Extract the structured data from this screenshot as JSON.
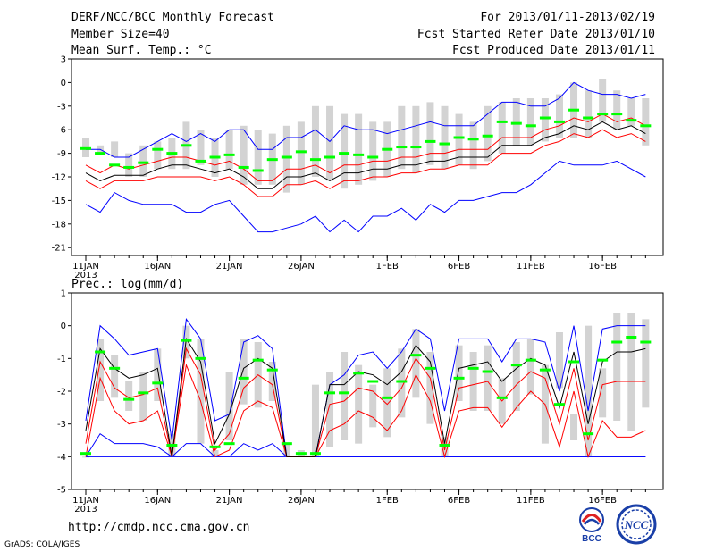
{
  "header": {
    "title": "DERF/NCC/BCC Monthly Forecast",
    "member_size": "Member Size=40",
    "variable": "Mean Surf. Temp.: °C",
    "forecast_period": "For 2013/01/11-2013/02/19",
    "start_date": "Fcst Started Refer Date 2013/01/10",
    "produced_date": "Fcst Produced Date 2013/01/11"
  },
  "footer": {
    "url": "http://cmdp.ncc.cma.gov.cn",
    "grads": "GrADS: COLA/IGES",
    "logo_bcc": "BCC",
    "logo_ncc": "NCC"
  },
  "colors": {
    "bar": "#d3d3d3",
    "mean": "#00ff00",
    "median": "#000000",
    "band": "#ff0000",
    "extreme": "#0000ff"
  },
  "chart_data": [
    {
      "type": "box-plume",
      "title": "Mean Surf. Temp.: °C",
      "x": [
        0,
        1,
        2,
        3,
        4,
        5,
        6,
        7,
        8,
        9,
        10,
        11,
        12,
        13,
        14,
        15,
        16,
        17,
        18,
        19,
        20,
        21,
        22,
        23,
        24,
        25,
        26,
        27,
        28,
        29,
        30,
        31,
        32,
        33,
        34,
        35,
        36,
        37,
        38,
        39
      ],
      "xtick_positions": [
        0,
        5,
        10,
        15,
        21,
        26,
        31,
        36
      ],
      "xtick_labels": [
        "11JAN",
        "16JAN",
        "21JAN",
        "26JAN",
        "1FEB",
        "6FEB",
        "11FEB",
        "16FEB"
      ],
      "year_label": "2013",
      "ylim": [
        -22,
        3
      ],
      "yticks": [
        3,
        0,
        -3,
        -6,
        -9,
        -12,
        -15,
        -18,
        -21
      ],
      "bar_low": [
        -9.5,
        -9,
        -9.5,
        -12,
        -12,
        -11,
        -11,
        -11,
        -10.5,
        -12,
        -11,
        -13,
        -13,
        -13,
        -14,
        -13,
        -12,
        -12.5,
        -13.5,
        -13,
        -12.5,
        -12,
        -11,
        -11.5,
        -10.5,
        -11,
        -10.5,
        -11,
        -10,
        -9,
        -8,
        -8,
        -7.5,
        -7,
        -7,
        -7,
        -5,
        -6,
        -5.5,
        -8
      ],
      "bar_high": [
        -7,
        -8,
        -7.5,
        -9,
        -8,
        -7.5,
        -7,
        -5,
        -6,
        -7,
        -6,
        -5.5,
        -6,
        -6.5,
        -5.5,
        -5,
        -3,
        -3,
        -4,
        -4,
        -5,
        -5,
        -3,
        -3,
        -2.5,
        -3,
        -4,
        -5,
        -3,
        -2.5,
        -2,
        -2,
        -2,
        -1.5,
        0,
        -1,
        0.5,
        -1,
        -2,
        -2
      ],
      "mean": [
        -8.4,
        -9,
        -10.5,
        -10.8,
        -10.2,
        -8.5,
        -9,
        -8,
        -10,
        -9.5,
        -9.2,
        -10.8,
        -11.2,
        -9.8,
        -9.5,
        -8.8,
        -9.8,
        -9.5,
        -9,
        -9.2,
        -9.5,
        -8.5,
        -8.2,
        -8.2,
        -7.5,
        -7.8,
        -7,
        -7.2,
        -6.8,
        -5,
        -5.2,
        -5.5,
        -4.5,
        -5,
        -3.5,
        -4.5,
        -4,
        -4,
        -4.8,
        -5.5
      ],
      "median": [
        -11.5,
        -12.5,
        -11.8,
        -11.8,
        -11.8,
        -11,
        -10.5,
        -10.5,
        -11,
        -11.5,
        -11,
        -12,
        -13.5,
        -13.5,
        -12,
        -12,
        -11.5,
        -12.5,
        -11.5,
        -11.5,
        -11,
        -11,
        -10.5,
        -10.5,
        -10,
        -10,
        -9.5,
        -9.5,
        -9.5,
        -8,
        -8,
        -8,
        -7,
        -6.5,
        -5.5,
        -6,
        -5,
        -6,
        -5.5,
        -6.5
      ],
      "upper_band": [
        -10.5,
        -11.5,
        -10.5,
        -11,
        -10.5,
        -10,
        -9.5,
        -9.5,
        -10,
        -10.5,
        -10,
        -11,
        -12.5,
        -12.5,
        -11,
        -11,
        -10.5,
        -11.5,
        -10.5,
        -10.5,
        -10,
        -10,
        -9.5,
        -9.5,
        -9,
        -9,
        -8.5,
        -8.5,
        -8.5,
        -7,
        -7,
        -7,
        -6,
        -5.5,
        -4.5,
        -5,
        -4,
        -5,
        -4.5,
        -5.5
      ],
      "lower_band": [
        -12.5,
        -13.5,
        -12.5,
        -12.5,
        -12.5,
        -12,
        -12,
        -12,
        -12,
        -12.5,
        -12,
        -13,
        -14.5,
        -14.5,
        -13,
        -13,
        -12.5,
        -13.5,
        -12.5,
        -12.5,
        -12,
        -12,
        -11.5,
        -11.5,
        -11,
        -11,
        -10.5,
        -10.5,
        -10.5,
        -9,
        -9,
        -9,
        -8,
        -7.5,
        -6.5,
        -7,
        -6,
        -7,
        -6.5,
        -7.5
      ],
      "max": [
        -8.5,
        -8.5,
        -9.5,
        -9.5,
        -8.5,
        -7.5,
        -6.5,
        -7.5,
        -6.5,
        -7.5,
        -6,
        -6,
        -8.5,
        -8.5,
        -7,
        -7,
        -6,
        -7.5,
        -5.5,
        -6,
        -6,
        -6.5,
        -6,
        -5.5,
        -5,
        -5.5,
        -5.5,
        -5.5,
        -4,
        -2.5,
        -2.5,
        -3,
        -3,
        -2,
        0,
        -1,
        -1.5,
        -1.5,
        -2,
        -1.5
      ],
      "min": [
        -15.5,
        -16.5,
        -14,
        -15,
        -15.5,
        -15.5,
        -15.5,
        -16.5,
        -16.5,
        -15.5,
        -15,
        -17,
        -19,
        -19,
        -18.5,
        -18,
        -17,
        -19,
        -17.5,
        -19,
        -17,
        -17,
        -16,
        -17.5,
        -15.5,
        -16.5,
        -15,
        -15,
        -14.5,
        -14,
        -14,
        -13,
        -11.5,
        -10,
        -10.5,
        -10.5,
        -10.5,
        -10,
        -11,
        -12
      ]
    },
    {
      "type": "box-plume",
      "title": "Prec.: log(mm/d)",
      "x": [
        0,
        1,
        2,
        3,
        4,
        5,
        6,
        7,
        8,
        9,
        10,
        11,
        12,
        13,
        14,
        15,
        16,
        17,
        18,
        19,
        20,
        21,
        22,
        23,
        24,
        25,
        26,
        27,
        28,
        29,
        30,
        31,
        32,
        33,
        34,
        35,
        36,
        37,
        38,
        39
      ],
      "xtick_positions": [
        0,
        5,
        10,
        15,
        21,
        26,
        31,
        36
      ],
      "xtick_labels": [
        "11JAN",
        "16JAN",
        "21JAN",
        "26JAN",
        "1FEB",
        "6FEB",
        "11FEB",
        "16FEB"
      ],
      "year_label": "2013",
      "ylim": [
        -5,
        1
      ],
      "yticks": [
        1,
        0,
        -1,
        -2,
        -3,
        -4,
        -5
      ],
      "bar_low": [
        -4,
        -2.3,
        -2.2,
        -2.6,
        -2.9,
        -2.3,
        -4,
        -1,
        -3.6,
        -4,
        -3.5,
        -2.4,
        -2.5,
        -2.3,
        -4,
        -4,
        -4,
        -3.7,
        -3.5,
        -3.6,
        -3.1,
        -3.4,
        -2.8,
        -2.2,
        -3,
        -4,
        -2.3,
        -2.6,
        -2.6,
        -3,
        -2.6,
        -2.1,
        -3.6,
        -1.9,
        -3.5,
        -4,
        -2.8,
        -2.9,
        -3.2,
        -2.5
      ],
      "bar_high": [
        -4,
        -0.4,
        -0.9,
        -1.7,
        -1.4,
        -0.7,
        -3.3,
        0,
        -0.4,
        -3.8,
        -1.4,
        -0.4,
        -0.5,
        -1.1,
        -3.6,
        -3.8,
        -1.8,
        -1.4,
        -0.8,
        -1.2,
        -1.8,
        -1.3,
        -0.7,
        -0.1,
        -0.8,
        -3.4,
        -0.6,
        -0.8,
        -0.6,
        -1.6,
        -0.5,
        -0.4,
        -1.2,
        -0.2,
        -2.7,
        0,
        -1.3,
        0.4,
        0.4,
        0.2
      ],
      "mean": [
        -3.9,
        -0.8,
        -1.3,
        -2.25,
        -2.05,
        -1.75,
        -3.65,
        -0.45,
        -1,
        -3.7,
        -3.6,
        -1.6,
        -1.05,
        -1.35,
        -3.6,
        -3.9,
        -3.9,
        -2.05,
        -2.05,
        -1.45,
        -1.7,
        -2.2,
        -1.7,
        -0.9,
        -1.3,
        -3.65,
        -1.6,
        -1.3,
        -1.4,
        -2.2,
        -1.2,
        -1.05,
        -1.35,
        -2.4,
        -1.1,
        -3.3,
        -1.05,
        -0.5,
        -0.35,
        -0.5
      ],
      "median": [
        -3.2,
        -0.7,
        -1.3,
        -1.6,
        -1.5,
        -1.3,
        -4,
        -0.4,
        -1.1,
        -3.6,
        -2.7,
        -1.3,
        -1,
        -1.3,
        -4,
        -4,
        -4,
        -1.8,
        -1.8,
        -1.4,
        -1.5,
        -1.8,
        -1.4,
        -0.6,
        -1.1,
        -3.6,
        -1.3,
        -1.2,
        -1.1,
        -1.7,
        -1.3,
        -1,
        -1.2,
        -2.5,
        -0.8,
        -3,
        -1.1,
        -0.8,
        -0.8,
        -0.7
      ],
      "upper_band": [
        -3.6,
        -1.1,
        -1.9,
        -2.2,
        -2.1,
        -1.9,
        -4,
        -0.7,
        -1.5,
        -3.8,
        -3.3,
        -1.9,
        -1.5,
        -1.8,
        -4,
        -4,
        -4,
        -2.4,
        -2.3,
        -1.9,
        -2,
        -2.4,
        -1.9,
        -1,
        -1.6,
        -3.8,
        -1.9,
        -1.8,
        -1.7,
        -2.3,
        -1.8,
        -1.4,
        -1.6,
        -3,
        -1.3,
        -3.5,
        -1.8,
        -1.7,
        -1.7,
        -1.7
      ],
      "lower_band": [
        -4,
        -1.6,
        -2.6,
        -3,
        -2.9,
        -2.6,
        -4,
        -1.2,
        -2.3,
        -4,
        -3.8,
        -2.6,
        -2.3,
        -2.5,
        -4,
        -4,
        -4,
        -3.2,
        -3,
        -2.6,
        -2.8,
        -3.2,
        -2.6,
        -1.5,
        -2.3,
        -4,
        -2.6,
        -2.5,
        -2.5,
        -3.1,
        -2.5,
        -2,
        -2.4,
        -3.7,
        -2,
        -4,
        -2.9,
        -3.4,
        -3.4,
        -3.2
      ],
      "max": [
        -2.9,
        0,
        -0.4,
        -0.9,
        -0.8,
        -0.7,
        -3.5,
        0.2,
        -0.4,
        -2.9,
        -2.7,
        -0.5,
        -0.3,
        -0.7,
        -4,
        -4,
        -4,
        -1.8,
        -1.5,
        -0.9,
        -0.8,
        -1.3,
        -0.8,
        -0.1,
        -0.4,
        -2.6,
        -0.4,
        -0.4,
        -0.4,
        -1.1,
        -0.4,
        -0.4,
        -0.5,
        -2,
        0,
        -2.6,
        -0.1,
        0,
        0,
        0
      ],
      "min": [
        -4,
        -3.3,
        -3.6,
        -3.6,
        -3.6,
        -3.7,
        -4,
        -3.6,
        -3.6,
        -4,
        -4,
        -3.6,
        -3.8,
        -3.6,
        -4,
        -4,
        -4,
        -4,
        -4,
        -4,
        -4,
        -4,
        -4,
        -4,
        -4,
        -4,
        -4,
        -4,
        -4,
        -4,
        -4,
        -4,
        -4,
        -4,
        -4,
        -4,
        -4,
        -4,
        -4,
        -4
      ],
      "floor": -4
    }
  ]
}
